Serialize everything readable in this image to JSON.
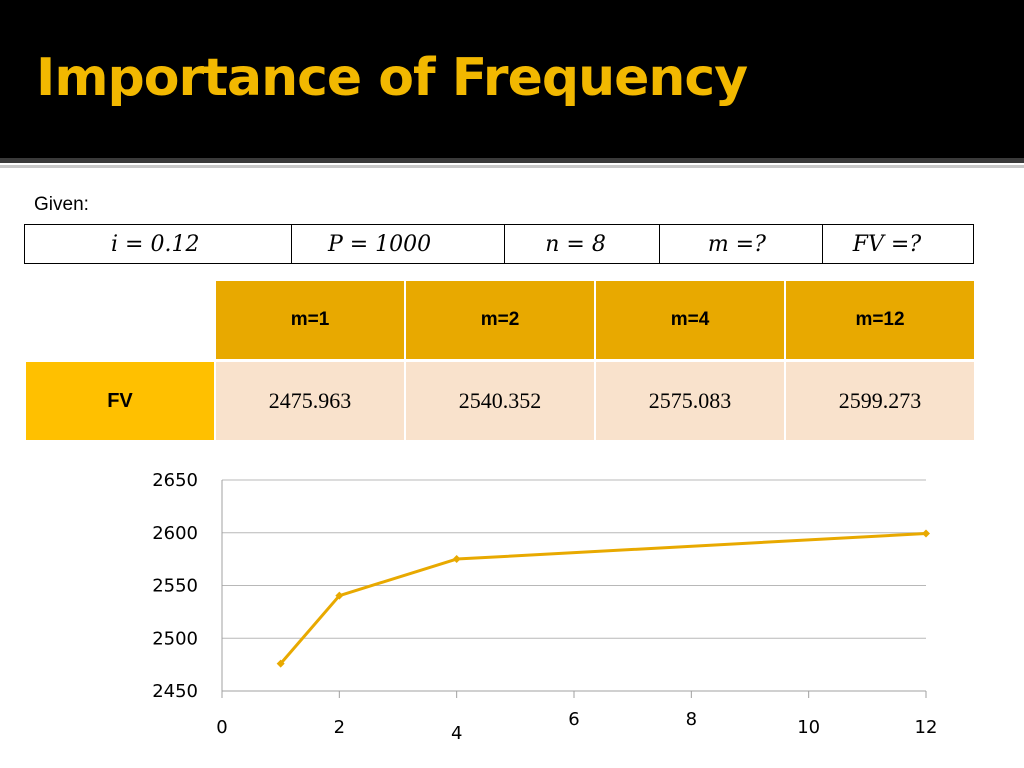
{
  "slide": {
    "title": "Importance of Frequency",
    "given_label": "Given:",
    "given": [
      "i = 0.12",
      "P = 1000",
      "n = 8",
      "m =?",
      "FV =?"
    ]
  },
  "table": {
    "row_label": "FV",
    "headers": [
      "m=1",
      "m=2",
      "m=4",
      "m=12"
    ],
    "values": [
      "2475.963",
      "2540.352",
      "2575.083",
      "2599.273"
    ]
  },
  "chart_data": {
    "type": "line",
    "x": [
      1,
      2,
      4,
      12
    ],
    "series": [
      {
        "values": [
          2475.963,
          2540.352,
          2575.083,
          2599.273
        ],
        "color": "#e8a900"
      }
    ],
    "xlim": [
      0,
      12
    ],
    "ylim": [
      2450,
      2650
    ],
    "xticks": [
      "0",
      "2",
      "4",
      "6",
      "8",
      "10",
      "12"
    ],
    "yticks": [
      "2450",
      "2500",
      "2550",
      "2600",
      "2650"
    ],
    "grid": true,
    "title": "",
    "xlabel": "",
    "ylabel": ""
  }
}
